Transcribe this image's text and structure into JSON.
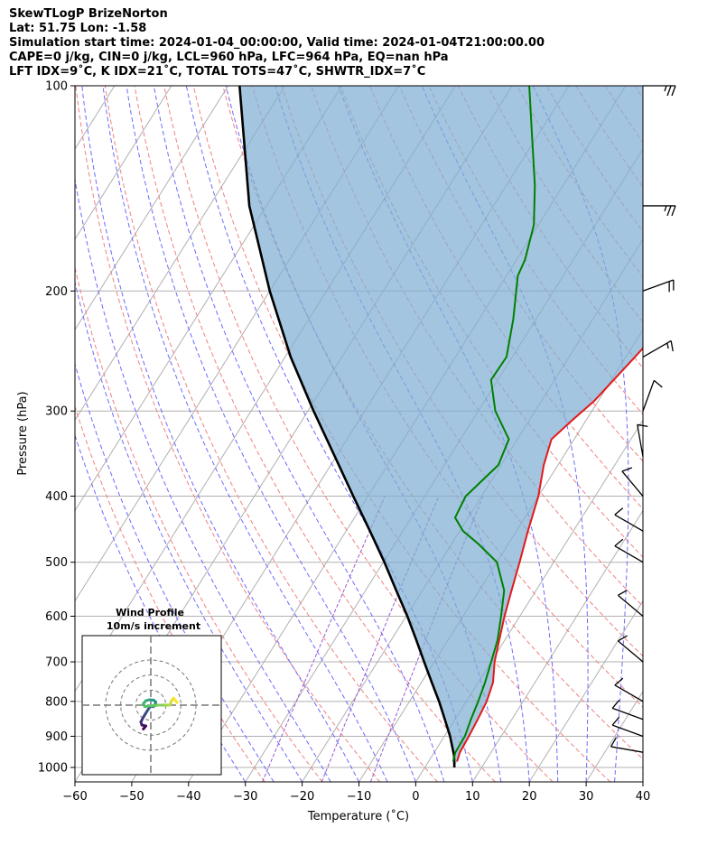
{
  "header": {
    "line1": "SkewTLogP BrizeNorton",
    "line2": "Lat: 51.75   Lon: -1.58",
    "line3": "Simulation start time: 2024-01-04_00:00:00, Valid time: 2024-01-04T21:00:00.00",
    "line4": "CAPE=0 j/kg, CIN=0 j/kg, LCL=960 hPa, LFC=964 hPa, EQ=nan hPa",
    "line5": "LFT IDX=9˚C, K IDX=21˚C, TOTAL TOTS=47˚C, SHWTR_IDX=7˚C"
  },
  "chart_data": {
    "type": "line",
    "subtype": "skew-T log-P",
    "xlabel": "Temperature (˚C)",
    "ylabel": "Pressure (hPa)",
    "xlim": [
      -60,
      40
    ],
    "ylim_hpa": [
      1050,
      100
    ],
    "y_scale": "log",
    "grid": true,
    "x_ticks": [
      -60,
      -50,
      -40,
      -30,
      -20,
      -10,
      0,
      10,
      20,
      30,
      40
    ],
    "x_tick_labels": [
      "−60",
      "−50",
      "−40",
      "−30",
      "−20",
      "−10",
      "0",
      "10",
      "20",
      "30",
      "40"
    ],
    "y_ticks": [
      100,
      200,
      300,
      400,
      500,
      600,
      700,
      800,
      900,
      1000
    ],
    "y_tick_labels": [
      "100",
      "200",
      "300",
      "400",
      "500",
      "600",
      "700",
      "800",
      "900",
      "1000"
    ],
    "series": [
      {
        "role": "temperature",
        "color": "#e31a1c",
        "p": [
          980,
          950,
          900,
          850,
          800,
          750,
          700,
          650,
          600,
          550,
          500,
          450,
          400,
          360,
          330,
          310,
          290,
          270,
          250,
          220,
          200,
          180,
          160,
          140,
          120,
          105,
          100
        ],
        "t": [
          5,
          4.5,
          4.3,
          4.0,
          3.6,
          2.6,
          0.6,
          -1.0,
          -2.7,
          -4.3,
          -6.0,
          -8.0,
          -10.0,
          -12.5,
          -14.0,
          -12.5,
          -10.7,
          -9.6,
          -8.4,
          -6.5,
          -6.0,
          -5.5,
          -6.0,
          -7.5,
          -9.5,
          -11.0,
          -12.0
        ]
      },
      {
        "role": "dewpoint",
        "color": "#008000",
        "p": [
          980,
          950,
          900,
          850,
          800,
          750,
          700,
          650,
          600,
          550,
          500,
          470,
          450,
          430,
          400,
          360,
          330,
          300,
          270,
          250,
          220,
          190,
          180,
          160,
          140,
          120,
          100
        ],
        "t": [
          4.3,
          3.7,
          3.6,
          2.8,
          2.1,
          1.2,
          0.0,
          -1.3,
          -3.3,
          -5.6,
          -10.0,
          -15.3,
          -19.4,
          -22.3,
          -22.8,
          -20.5,
          -21.5,
          -27.0,
          -31.2,
          -31.0,
          -34.0,
          -38.0,
          -38.5,
          -40.8,
          -45.0,
          -50.5,
          -57.0
        ]
      },
      {
        "role": "parcel",
        "color": "#000000",
        "p": [
          1000,
          960,
          900,
          850,
          800,
          750,
          700,
          650,
          600,
          550,
          500,
          450,
          400,
          350,
          300,
          250,
          200,
          150,
          100
        ],
        "t": [
          5.2,
          3.8,
          1.0,
          -1.8,
          -4.8,
          -8.2,
          -11.8,
          -15.6,
          -19.8,
          -24.6,
          -29.8,
          -35.8,
          -42.6,
          -50.2,
          -59.0,
          -69.0,
          -80.0,
          -93.0,
          -108.0
        ]
      }
    ],
    "wind_barbs": [
      {
        "p": 100,
        "speed_kt": 25,
        "dir_deg": 270
      },
      {
        "p": 150,
        "speed_kt": 25,
        "dir_deg": 270
      },
      {
        "p": 200,
        "speed_kt": 20,
        "dir_deg": 250
      },
      {
        "p": 250,
        "speed_kt": 15,
        "dir_deg": 240
      },
      {
        "p": 300,
        "speed_kt": 10,
        "dir_deg": 200
      },
      {
        "p": 350,
        "speed_kt": 10,
        "dir_deg": 170
      },
      {
        "p": 400,
        "speed_kt": 10,
        "dir_deg": 140
      },
      {
        "p": 450,
        "speed_kt": 10,
        "dir_deg": 120
      },
      {
        "p": 500,
        "speed_kt": 10,
        "dir_deg": 120
      },
      {
        "p": 600,
        "speed_kt": 10,
        "dir_deg": 130
      },
      {
        "p": 700,
        "speed_kt": 10,
        "dir_deg": 130
      },
      {
        "p": 800,
        "speed_kt": 10,
        "dir_deg": 120
      },
      {
        "p": 850,
        "speed_kt": 10,
        "dir_deg": 110
      },
      {
        "p": 900,
        "speed_kt": 10,
        "dir_deg": 110
      },
      {
        "p": 950,
        "speed_kt": 10,
        "dir_deg": 100
      }
    ],
    "hodograph": {
      "title_line1": "Wind Profile",
      "title_line2": "10m/s increment",
      "u": [
        -1.5,
        -1.0,
        -1.8,
        -2.0,
        -1.6,
        -1.0,
        -0.5,
        0.0,
        0.5,
        0.8,
        1.0,
        0.6,
        -0.2,
        -1.0,
        -1.5,
        -1.2,
        0.0,
        1.5,
        3.0,
        3.8,
        4.2,
        4.6,
        5.3
      ],
      "v": [
        -4.8,
        -4.2,
        -4.0,
        -3.4,
        -2.6,
        -1.6,
        -0.8,
        -0.2,
        -0.3,
        -0.1,
        0.6,
        1.0,
        1.1,
        0.9,
        0.3,
        -0.3,
        -0.1,
        0.0,
        0.0,
        0.0,
        0.9,
        1.4,
        0.5
      ],
      "rings_ms": [
        10,
        20,
        30
      ]
    }
  }
}
